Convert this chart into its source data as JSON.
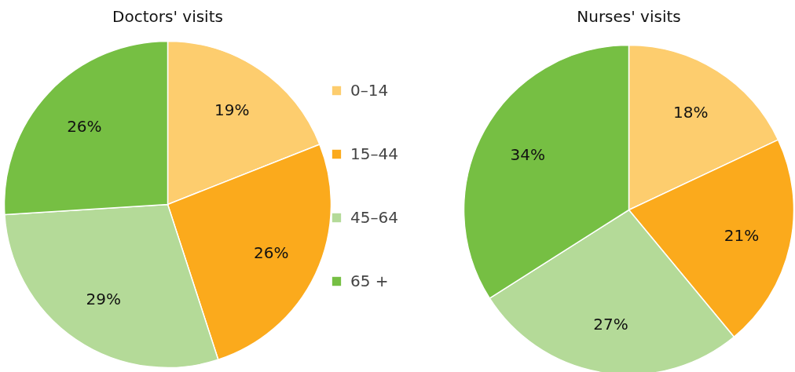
{
  "chart_data": [
    {
      "type": "pie",
      "title": "Doctors' visits",
      "categories": [
        "0–14",
        "15–44",
        "45–64",
        "65 +"
      ],
      "values": [
        19,
        26,
        29,
        26
      ],
      "value_labels": [
        "19%",
        "26%",
        "29%",
        "26%"
      ],
      "colors": [
        "#fdcd6e",
        "#fbaa1c",
        "#b4da98",
        "#76bf43"
      ],
      "legend": "right"
    },
    {
      "type": "pie",
      "title": "Nurses' visits",
      "categories": [
        null,
        null,
        null,
        null
      ],
      "values": [
        18,
        21,
        27,
        34
      ],
      "value_labels": [
        "18%",
        "21%",
        "27%",
        "34%"
      ],
      "colors": [
        "#fdcd6e",
        "#fbaa1c",
        "#b4da98",
        "#76bf43"
      ]
    }
  ]
}
